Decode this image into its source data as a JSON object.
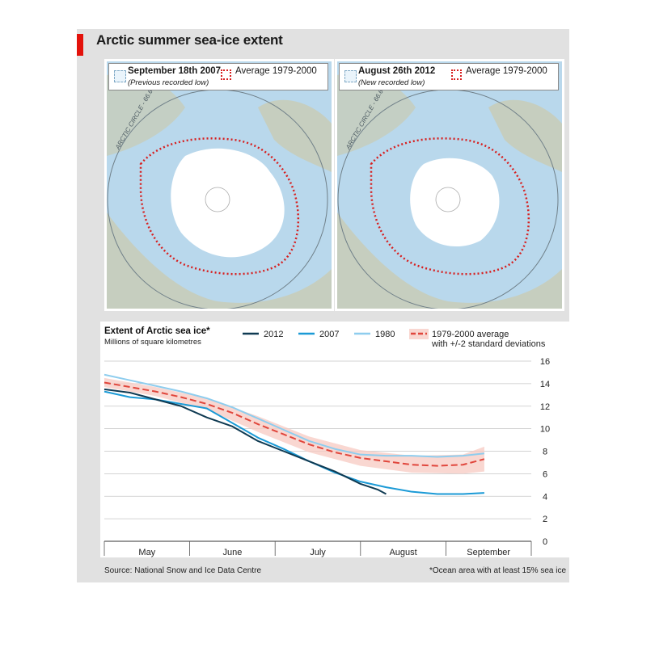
{
  "title": "Arctic summer sea-ice extent",
  "maps": [
    {
      "date": "September 18th 2007",
      "note": "(Previous recorded low)",
      "avg_label": "Average 1979-2000",
      "circle_label": "ARCTIC CIRCLE - 66.6°"
    },
    {
      "date": "August 26th 2012",
      "note": "(New recorded low)",
      "avg_label": "Average 1979-2000",
      "circle_label": "ARCTIC CIRCLE - 66.6°"
    }
  ],
  "colors": {
    "accent": "#e3120b",
    "ocean": "#b9d8ec",
    "land": "#c9ccb4",
    "ice": "#ffffff",
    "avg_outline": "#d71f1f",
    "s2012": "#0f3a52",
    "s2007": "#1b9ad6",
    "s1980": "#8ecdee",
    "avg": "#e0463c",
    "band": "#f7c9c2"
  },
  "chart_data": {
    "type": "line",
    "title": "Extent of Arctic sea ice*",
    "ylabel": "Millions of square kilometres",
    "xlabels": [
      "May",
      "June",
      "July",
      "August",
      "September"
    ],
    "ylim": [
      0,
      16
    ],
    "yticks": [
      0,
      2,
      4,
      6,
      8,
      10,
      12,
      14,
      16
    ],
    "grid": true,
    "legend_position": "top",
    "series": [
      {
        "name": "2012",
        "color": "#0f3a52",
        "width": 2,
        "points": [
          [
            0,
            13.5
          ],
          [
            0.3,
            13.2
          ],
          [
            0.6,
            12.6
          ],
          [
            0.9,
            12.0
          ],
          [
            1.2,
            11.0
          ],
          [
            1.5,
            10.2
          ],
          [
            1.8,
            8.9
          ],
          [
            2.1,
            8.0
          ],
          [
            2.4,
            7.1
          ],
          [
            2.7,
            6.2
          ],
          [
            3.0,
            5.1
          ],
          [
            3.2,
            4.6
          ],
          [
            3.3,
            4.2
          ]
        ]
      },
      {
        "name": "2007",
        "color": "#1b9ad6",
        "width": 2,
        "points": [
          [
            0,
            13.3
          ],
          [
            0.3,
            12.8
          ],
          [
            0.6,
            12.6
          ],
          [
            0.9,
            12.2
          ],
          [
            1.2,
            11.8
          ],
          [
            1.5,
            10.5
          ],
          [
            1.8,
            9.2
          ],
          [
            2.1,
            8.2
          ],
          [
            2.4,
            7.1
          ],
          [
            2.7,
            6.1
          ],
          [
            3.0,
            5.3
          ],
          [
            3.3,
            4.8
          ],
          [
            3.6,
            4.4
          ],
          [
            3.9,
            4.2
          ],
          [
            4.2,
            4.2
          ],
          [
            4.45,
            4.3
          ]
        ]
      },
      {
        "name": "1980",
        "color": "#8ecdee",
        "width": 2,
        "points": [
          [
            0,
            14.8
          ],
          [
            0.3,
            14.3
          ],
          [
            0.6,
            13.8
          ],
          [
            0.9,
            13.3
          ],
          [
            1.2,
            12.7
          ],
          [
            1.5,
            11.9
          ],
          [
            1.8,
            10.9
          ],
          [
            2.1,
            9.9
          ],
          [
            2.4,
            8.9
          ],
          [
            2.7,
            8.2
          ],
          [
            3.0,
            7.7
          ],
          [
            3.3,
            7.6
          ],
          [
            3.6,
            7.6
          ],
          [
            3.9,
            7.5
          ],
          [
            4.2,
            7.6
          ],
          [
            4.45,
            7.8
          ]
        ]
      },
      {
        "name": "1979-2000 average\nwith +/-2 standard deviations",
        "color": "#e0463c",
        "width": 2,
        "dashed": true,
        "points": [
          [
            0,
            14.1
          ],
          [
            0.3,
            13.7
          ],
          [
            0.6,
            13.3
          ],
          [
            0.9,
            12.8
          ],
          [
            1.2,
            12.2
          ],
          [
            1.5,
            11.4
          ],
          [
            1.8,
            10.4
          ],
          [
            2.1,
            9.5
          ],
          [
            2.4,
            8.6
          ],
          [
            2.7,
            7.9
          ],
          [
            3.0,
            7.4
          ],
          [
            3.3,
            7.1
          ],
          [
            3.6,
            6.8
          ],
          [
            3.9,
            6.7
          ],
          [
            4.2,
            6.8
          ],
          [
            4.45,
            7.3
          ]
        ],
        "band": [
          [
            0,
            13.7,
            14.5
          ],
          [
            0.6,
            12.9,
            13.7
          ],
          [
            1.2,
            11.7,
            12.7
          ],
          [
            1.8,
            9.7,
            11.1
          ],
          [
            2.4,
            7.9,
            9.3
          ],
          [
            3.0,
            6.7,
            8.1
          ],
          [
            3.6,
            6.1,
            7.6
          ],
          [
            4.2,
            6.0,
            7.7
          ],
          [
            4.45,
            6.2,
            8.4
          ]
        ]
      }
    ],
    "footnote": "*Ocean area with at least 15% sea ice"
  },
  "source": "Source: National Snow and Ice Data Centre"
}
